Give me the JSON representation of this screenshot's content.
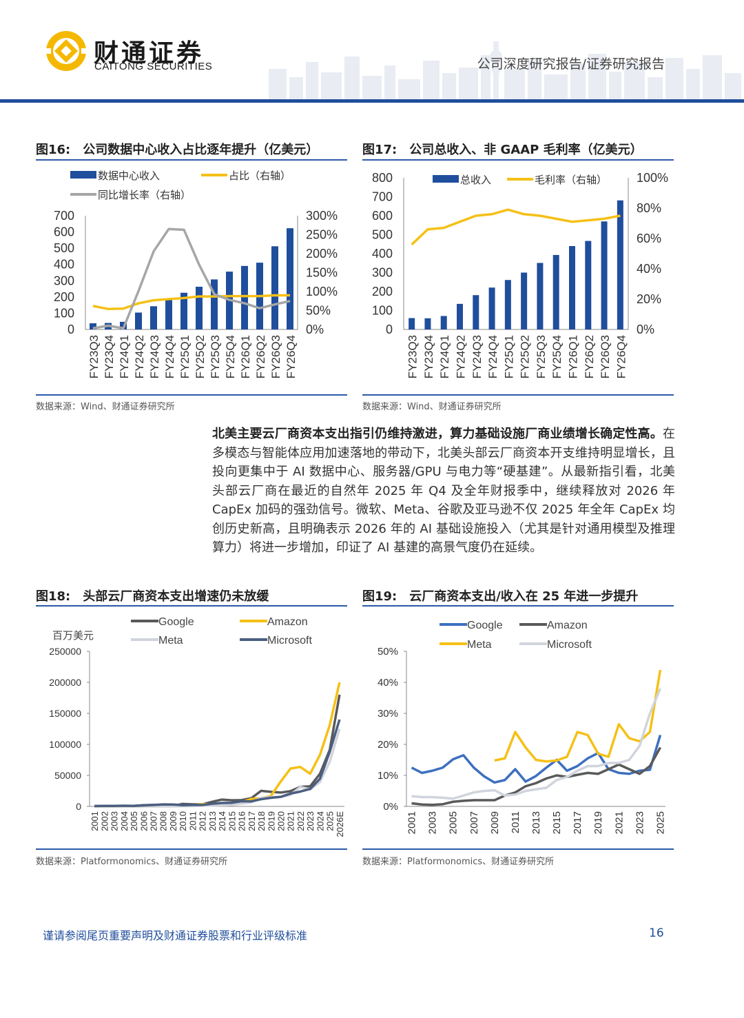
{
  "header": {
    "brand_cn": "财通证券",
    "brand_en": "CAITONG SECURITIES",
    "report_type": "公司深度研究报告/证券研究报告"
  },
  "figures": {
    "fig16": {
      "num": "图16:",
      "title": "公司数据中心收入占比逐年提升（亿美元）",
      "source": "数据来源：Wind、财通证券研究所"
    },
    "fig17": {
      "num": "图17:",
      "title": "公司总收入、非 GAAP 毛利率（亿美元）",
      "source": "数据来源：Wind、财通证券研究所"
    },
    "fig18": {
      "num": "图18:",
      "title": "头部云厂商资本支出增速仍未放缓",
      "source": "数据来源：Platformonomics、财通证券研究所"
    },
    "fig19": {
      "num": "图19:",
      "title": "云厂商资本支出/收入在 25 年进一步提升",
      "source": "数据来源：Platformonomics、财通证券研究所"
    }
  },
  "paragraph": {
    "lead": "北美主要云厂商资本支出指引仍维持激进，算力基础设施厂商业绩增长确定性高。",
    "body": "在多模态与智能体应用加速落地的带动下，北美头部云厂商资本开支维持明显增长，且投向更集中于 AI 数据中心、服务器/GPU 与电力等“硬基建”。从最新指引看，北美头部云厂商在最近的自然年 2025 年 Q4 及全年财报季中，继续释放对 2026 年 CapEx 加码的强劲信号。微软、Meta、谷歌及亚马逊不仅 2025 年全年 CapEx 均创历史新高，且明确表示 2026 年的 AI 基础设施投入（尤其是针对通用模型及推理算力）将进一步增加，印证了 AI 基建的高景气度仍在延续。"
  },
  "footer": {
    "disclaimer": "谨请参阅尾页重要声明及财通证券股票和行业评级标准",
    "page_number": "16"
  },
  "colors": {
    "blue": "#1f4e9c",
    "yellow": "#f5c016",
    "gray": "#a6a6a6",
    "dark_gray": "#595959",
    "light_gray": "#d0d4dc",
    "slate": "#4a5e80",
    "mid_blue": "#3d6fbf"
  },
  "chart_data": [
    {
      "id": "fig16",
      "type": "bar",
      "categories": [
        "FY23Q3",
        "FY23Q4",
        "FY24Q1",
        "FY24Q2",
        "FY24Q3",
        "FY24Q4",
        "FY25Q1",
        "FY25Q2",
        "FY25Q3",
        "FY25Q4",
        "FY26Q1",
        "FY26Q2",
        "FY26Q3",
        "FY26Q4"
      ],
      "series": [
        {
          "name": "数据中心收入",
          "kind": "bar",
          "axis": "left",
          "values": [
            38,
            40,
            47,
            104,
            143,
            185,
            226,
            263,
            308,
            356,
            391,
            411,
            512,
            623
          ]
        },
        {
          "name": "占比（右轴）",
          "kind": "line",
          "axis": "right",
          "values": [
            62,
            54,
            55,
            69,
            77,
            80,
            83,
            87,
            87,
            88,
            88,
            88,
            90,
            90
          ]
        },
        {
          "name": "同比增长率（右轴）",
          "kind": "line",
          "axis": "right",
          "values": [
            3,
            10,
            3,
            101,
            206,
            265,
            263,
            171,
            93,
            78,
            69,
            56,
            66,
            75
          ]
        }
      ],
      "ylim_left": [
        0,
        700
      ],
      "yticks_left": [
        "700",
        "600",
        "500",
        "400",
        "300",
        "200",
        "100",
        "0"
      ],
      "ylim_right": [
        0,
        300
      ],
      "yticks_right": [
        "300%",
        "250%",
        "200%",
        "150%",
        "100%",
        "50%",
        "0%"
      ]
    },
    {
      "id": "fig17",
      "type": "bar",
      "categories": [
        "FY23Q3",
        "FY23Q4",
        "FY24Q1",
        "FY24Q2",
        "FY24Q3",
        "FY24Q4",
        "FY25Q1",
        "FY25Q2",
        "FY25Q3",
        "FY25Q4",
        "FY26Q1",
        "FY26Q2",
        "FY26Q3",
        "FY26Q4"
      ],
      "series": [
        {
          "name": "总收入",
          "kind": "bar",
          "axis": "left",
          "values": [
            60,
            59,
            71,
            135,
            181,
            221,
            261,
            300,
            351,
            393,
            440,
            467,
            570,
            681
          ]
        },
        {
          "name": "毛利率（右轴）",
          "kind": "line",
          "axis": "right",
          "values": [
            56,
            66,
            67,
            71,
            75,
            76,
            79,
            76,
            75,
            73,
            71,
            72,
            73,
            75
          ]
        }
      ],
      "ylim_left": [
        0,
        800
      ],
      "yticks_left": [
        "800",
        "700",
        "600",
        "500",
        "400",
        "300",
        "200",
        "100",
        "0"
      ],
      "ylim_right": [
        0,
        100
      ],
      "yticks_right": [
        "100%",
        "80%",
        "60%",
        "40%",
        "20%",
        "0%"
      ]
    },
    {
      "id": "fig18",
      "type": "line",
      "ylabel": "百万美元",
      "x": [
        "2001",
        "2002",
        "2003",
        "2004",
        "2005",
        "2006",
        "2007",
        "2008",
        "2009",
        "2010",
        "2011",
        "2012",
        "2013",
        "2014",
        "2015",
        "2016",
        "2017",
        "2018",
        "2019",
        "2020",
        "2021",
        "2022",
        "2023",
        "2024",
        "2025",
        "2026E"
      ],
      "series": [
        {
          "name": "Google",
          "color": "#595959",
          "values": [
            0,
            100,
            200,
            300,
            800,
            1900,
            2400,
            2400,
            800,
            4000,
            3400,
            3300,
            7400,
            11000,
            9900,
            10200,
            13200,
            25100,
            23500,
            22300,
            24600,
            31500,
            32300,
            52500,
            91000,
            180000
          ]
        },
        {
          "name": "Amazon",
          "color": "#f5c016",
          "values": [
            100,
            100,
            100,
            100,
            200,
            200,
            200,
            300,
            400,
            1000,
            1800,
            3800,
            3400,
            4900,
            4600,
            6700,
            11900,
            13400,
            16900,
            40100,
            61100,
            63600,
            52700,
            83000,
            131000,
            200000
          ]
        },
        {
          "name": "Meta",
          "color": "#d0d4dc",
          "values": [
            0,
            0,
            0,
            0,
            0,
            0,
            0,
            0,
            0,
            300,
            600,
            1200,
            1400,
            1800,
            2500,
            4500,
            6700,
            13900,
            15100,
            15100,
            18600,
            31400,
            27300,
            39200,
            72000,
            125000
          ]
        },
        {
          "name": "Microsoft",
          "color": "#4a5e80",
          "values": [
            700,
            800,
            900,
            1100,
            800,
            1600,
            2300,
            3200,
            3100,
            2000,
            2400,
            2300,
            4300,
            5500,
            5900,
            8300,
            8100,
            11600,
            13900,
            15400,
            20600,
            23900,
            28100,
            44500,
            88000,
            140000
          ]
        }
      ],
      "ylim": [
        0,
        250000
      ],
      "yticks": [
        "250000",
        "200000",
        "150000",
        "100000",
        "50000",
        "0"
      ]
    },
    {
      "id": "fig19",
      "type": "line",
      "x": [
        "2001",
        "2002",
        "2003",
        "2004",
        "2005",
        "2006",
        "2007",
        "2008",
        "2009",
        "2010",
        "2011",
        "2012",
        "2013",
        "2014",
        "2015",
        "2016",
        "2017",
        "2018",
        "2019",
        "2020",
        "2021",
        "2022",
        "2023",
        "2024",
        "2025"
      ],
      "xticks": [
        "2001",
        "2003",
        "2005",
        "2007",
        "2009",
        "2011",
        "2013",
        "2015",
        "2017",
        "2019",
        "2021",
        "2023",
        "2025"
      ],
      "series": [
        {
          "name": "Google",
          "color": "#3d6fbf",
          "values": [
            12.5,
            10.8,
            11.5,
            12.5,
            15.2,
            16.5,
            12.5,
            9.7,
            7.7,
            8.5,
            12.0,
            8.0,
            9.8,
            12.5,
            15.0,
            11.5,
            13.0,
            15.5,
            17.2,
            12.0,
            10.8,
            10.5,
            11.5,
            11.8,
            23.0
          ]
        },
        {
          "name": "Amazon",
          "color": "#595959",
          "values": [
            1.0,
            0.6,
            0.5,
            0.7,
            1.5,
            1.8,
            2.0,
            2.0,
            2.0,
            3.5,
            4.5,
            6.5,
            7.5,
            9.0,
            10.0,
            9.5,
            10.2,
            10.8,
            10.5,
            12.0,
            13.5,
            12.0,
            10.5,
            13.0,
            19.0
          ]
        },
        {
          "name": "Meta",
          "color": "#f5c016",
          "values": [
            null,
            null,
            null,
            null,
            null,
            null,
            null,
            null,
            14.8,
            15.5,
            24.0,
            19.0,
            15.0,
            14.5,
            14.8,
            16.0,
            24.0,
            23.0,
            17.0,
            16.0,
            26.5,
            22.0,
            21.0,
            24.0,
            44.0
          ]
        },
        {
          "name": "Microsoft",
          "color": "#d0d4dc",
          "values": [
            3.3,
            3.0,
            3.0,
            2.8,
            2.5,
            3.5,
            4.5,
            5.0,
            5.2,
            3.5,
            3.8,
            5.0,
            5.5,
            6.0,
            8.5,
            9.5,
            11.5,
            13.0,
            13.0,
            14.0,
            14.0,
            15.0,
            19.5,
            30.0,
            38.0
          ]
        }
      ],
      "ylim": [
        0,
        50
      ],
      "yticks": [
        "50%",
        "40%",
        "30%",
        "20%",
        "10%",
        "0%"
      ]
    }
  ]
}
